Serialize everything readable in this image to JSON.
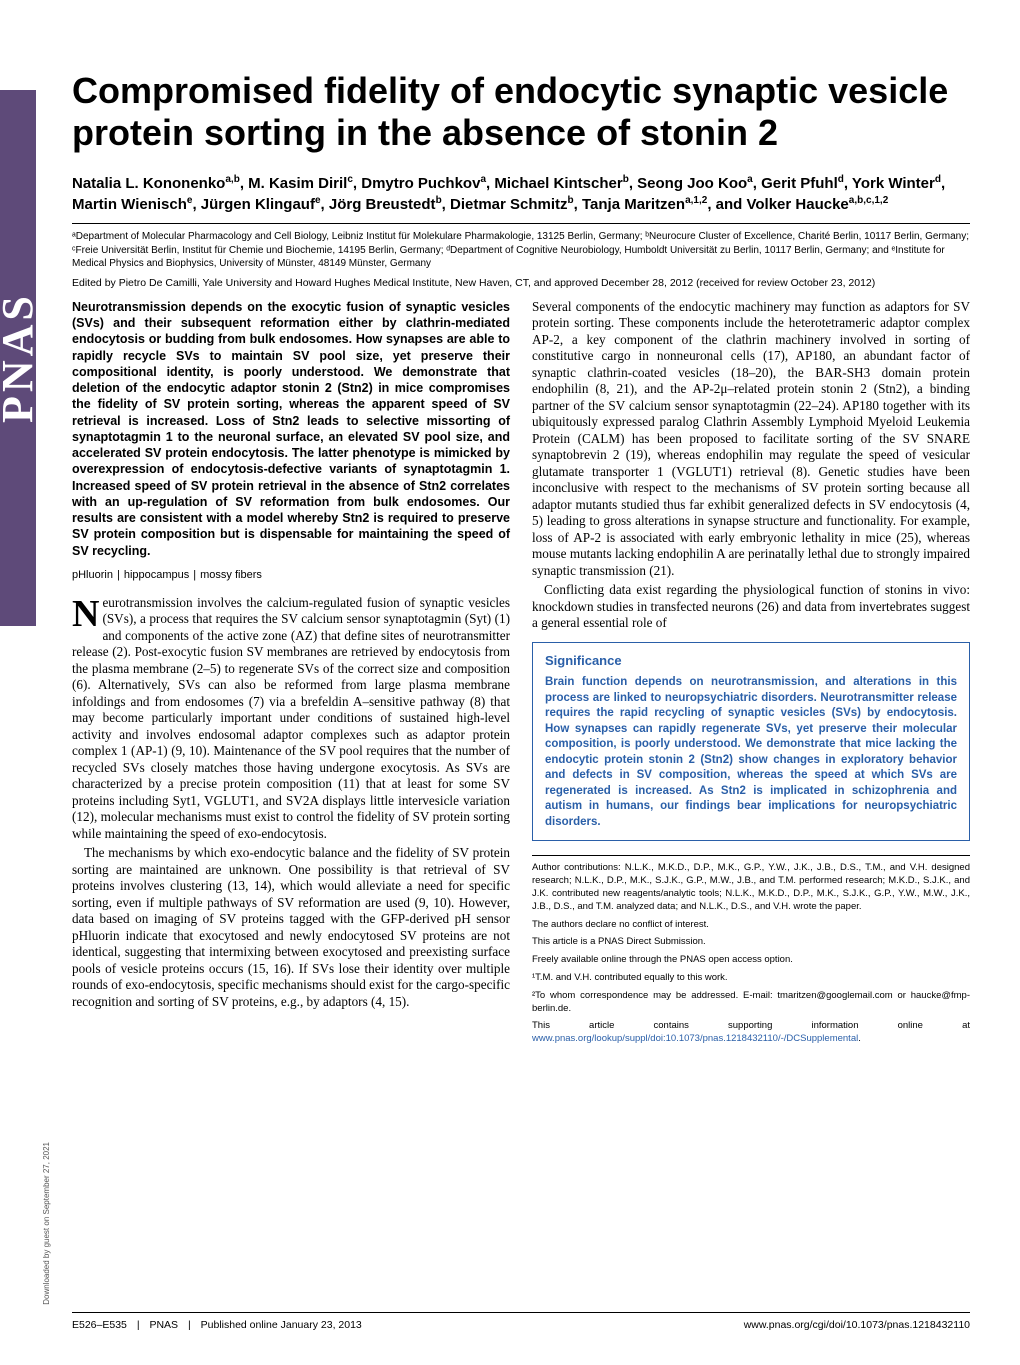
{
  "colors": {
    "accent_blue": "#2a5fa8",
    "ribbon_purple": "#5e4a79",
    "text": "#000000",
    "background": "#ffffff"
  },
  "ribbon": "PNAS",
  "title": "Compromised fidelity of endocytic synaptic vesicle protein sorting in the absence of stonin 2",
  "authors_html": "Natalia L. Kononenko<sup>a,b</sup>, M. Kasim Diril<sup>c</sup>, Dmytro Puchkov<sup>a</sup>, Michael Kintscher<sup>b</sup>, Seong Joo Koo<sup>a</sup>, Gerit Pfuhl<sup>d</sup>, York Winter<sup>d</sup>, Martin Wienisch<sup>e</sup>, Jürgen Klingauf<sup>e</sup>, Jörg Breustedt<sup>b</sup>, Dietmar Schmitz<sup>b</sup>, Tanja Maritzen<sup>a,1,2</sup>, and Volker Haucke<sup>a,b,c,1,2</sup>",
  "affiliations": "ᵃDepartment of Molecular Pharmacology and Cell Biology, Leibniz Institut für Molekulare Pharmakologie, 13125 Berlin, Germany; ᵇNeurocure Cluster of Excellence, Charité Berlin, 10117 Berlin, Germany; ᶜFreie Universität Berlin, Institut für Chemie und Biochemie, 14195 Berlin, Germany; ᵈDepartment of Cognitive Neurobiology, Humboldt Universität zu Berlin, 10117 Berlin, Germany; and ᵉInstitute for Medical Physics and Biophysics, University of Münster, 48149 Münster, Germany",
  "edited": "Edited by Pietro De Camilli, Yale University and Howard Hughes Medical Institute, New Haven, CT, and approved December 28, 2012 (received for review October 23, 2012)",
  "abstract": "Neurotransmission depends on the exocytic fusion of synaptic vesicles (SVs) and their subsequent reformation either by clathrin-mediated endocytosis or budding from bulk endosomes. How synapses are able to rapidly recycle SVs to maintain SV pool size, yet preserve their compositional identity, is poorly understood. We demonstrate that deletion of the endocytic adaptor stonin 2 (Stn2) in mice compromises the fidelity of SV protein sorting, whereas the apparent speed of SV retrieval is increased. Loss of Stn2 leads to selective missorting of synaptotagmin 1 to the neuronal surface, an elevated SV pool size, and accelerated SV protein endocytosis. The latter phenotype is mimicked by overexpression of endocytosis-defective variants of synaptotagmin 1. Increased speed of SV protein retrieval in the absence of Stn2 correlates with an up-regulation of SV reformation from bulk endosomes. Our results are consistent with a model whereby Stn2 is required to preserve SV protein composition but is dispensable for maintaining the speed of SV recycling.",
  "keywords": [
    "pHluorin",
    "hippocampus",
    "mossy fibers"
  ],
  "body_left": [
    "Neurotransmission involves the calcium-regulated fusion of synaptic vesicles (SVs), a process that requires the SV calcium sensor synaptotagmin (Syt) (1) and components of the active zone (AZ) that define sites of neurotransmitter release (2). Post-exocytic fusion SV membranes are retrieved by endocytosis from the plasma membrane (2–5) to regenerate SVs of the correct size and composition (6). Alternatively, SVs can also be reformed from large plasma membrane infoldings and from endosomes (7) via a brefeldin A–sensitive pathway (8) that may become particularly important under conditions of sustained high-level activity and involves endosomal adaptor complexes such as adaptor protein complex 1 (AP-1) (9, 10). Maintenance of the SV pool requires that the number of recycled SVs closely matches those having undergone exocytosis. As SVs are characterized by a precise protein composition (11) that at least for some SV proteins including Syt1, VGLUT1, and SV2A displays little intervesicle variation (12), molecular mechanisms must exist to control the fidelity of SV protein sorting while maintaining the speed of exo-endocytosis.",
    "The mechanisms by which exo-endocytic balance and the fidelity of SV protein sorting are maintained are unknown. One possibility is that retrieval of SV proteins involves clustering (13, 14), which would alleviate a need for specific sorting, even if multiple pathways of SV reformation are used (9, 10). However, data based on imaging of SV proteins tagged with the GFP-derived pH sensor pHluorin indicate that exocytosed and newly endocytosed SV proteins are not identical, suggesting that intermixing between exocytosed and preexisting surface pools of vesicle proteins occurs (15, 16). If SVs lose their identity over multiple rounds of exo-endocytosis, specific mechanisms should exist for the cargo-specific recognition and sorting of SV proteins, e.g., by adaptors (4, 15)."
  ],
  "body_right": [
    "Several components of the endocytic machinery may function as adaptors for SV protein sorting. These components include the heterotetrameric adaptor complex AP-2, a key component of the clathrin machinery involved in sorting of constitutive cargo in nonneuronal cells (17), AP180, an abundant factor of synaptic clathrin-coated vesicles (18–20), the BAR-SH3 domain protein endophilin (8, 21), and the AP-2μ–related protein stonin 2 (Stn2), a binding partner of the SV calcium sensor synaptotagmin (22–24). AP180 together with its ubiquitously expressed paralog Clathrin Assembly Lymphoid Myeloid Leukemia Protein (CALM) has been proposed to facilitate sorting of the SV SNARE synaptobrevin 2 (19), whereas endophilin may regulate the speed of vesicular glutamate transporter 1 (VGLUT1) retrieval (8). Genetic studies have been inconclusive with respect to the mechanisms of SV protein sorting because all adaptor mutants studied thus far exhibit generalized defects in SV endocytosis (4, 5) leading to gross alterations in synapse structure and functionality. For example, loss of AP-2 is associated with early embryonic lethality in mice (25), whereas mouse mutants lacking endophilin A are perinatally lethal due to strongly impaired synaptic transmission (21).",
    "Conflicting data exist regarding the physiological function of stonins in vivo: knockdown studies in transfected neurons (26) and data from invertebrates suggest a general essential role of"
  ],
  "significance": {
    "heading": "Significance",
    "body": "Brain function depends on neurotransmission, and alterations in this process are linked to neuropsychiatric disorders. Neurotransmitter release requires the rapid recycling of synaptic vesicles (SVs) by endocytosis. How synapses can rapidly regenerate SVs, yet preserve their molecular composition, is poorly understood. We demonstrate that mice lacking the endocytic protein stonin 2 (Stn2) show changes in exploratory behavior and defects in SV composition, whereas the speed at which SVs are regenerated is increased. As Stn2 is implicated in schizophrenia and autism in humans, our findings bear implications for neuropsychiatric disorders."
  },
  "footnotes": {
    "author_contrib": "Author contributions: N.L.K., M.K.D., D.P., M.K., G.P., Y.W., J.K., J.B., D.S., T.M., and V.H. designed research; N.L.K., D.P., M.K., S.J.K., G.P., M.W., J.B., and T.M. performed research; M.K.D., S.J.K., and J.K. contributed new reagents/analytic tools; N.L.K., M.K.D., D.P., M.K., S.J.K., G.P., Y.W., M.W., J.K., J.B., D.S., and T.M. analyzed data; and N.L.K., D.S., and V.H. wrote the paper.",
    "conflict": "The authors declare no conflict of interest.",
    "direct": "This article is a PNAS Direct Submission.",
    "open": "Freely available online through the PNAS open access option.",
    "eq": "¹T.M. and V.H. contributed equally to this work.",
    "corr": "²To whom correspondence may be addressed. E-mail: tmaritzen@googlemail.com or haucke@fmp-berlin.de.",
    "supp_pre": "This article contains supporting information online at ",
    "supp_link": "www.pnas.org/lookup/suppl/doi:10.1073/pnas.1218432110/-/DCSupplemental",
    "supp_post": "."
  },
  "footer": {
    "pages": "E526–E535",
    "journal": "PNAS",
    "pub": "Published online January 23, 2013",
    "doi": "www.pnas.org/cgi/doi/10.1073/pnas.1218432110"
  },
  "sidenote": "Downloaded by guest on September 27, 2021"
}
